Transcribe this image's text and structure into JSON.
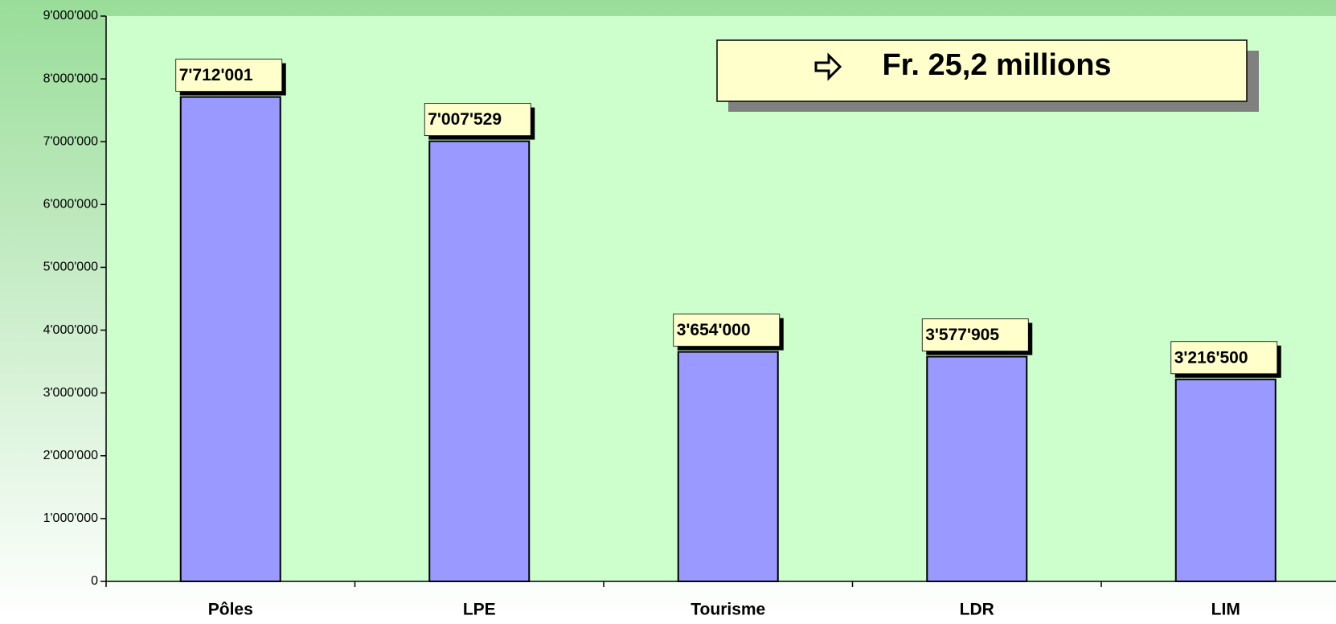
{
  "chart_data": {
    "type": "bar",
    "annotation": "Fr. 25,2 millions",
    "categories": [
      "Pôles",
      "LPE",
      "Tourisme",
      "LDR",
      "LIM"
    ],
    "values": [
      7712001,
      7007529,
      3654000,
      3577905,
      3216500
    ],
    "value_labels": [
      "7'712'001",
      "7'007'529",
      "3'654'000",
      "3'577'905",
      "3'216'500"
    ],
    "color": "#9999ff",
    "ylim": [
      0,
      9000000
    ],
    "yticks": [
      0,
      {
        "value": 1000000,
        "label": "1'000'000"
      },
      {
        "value": 2000000,
        "label": "2'000'000"
      },
      {
        "value": 3000000,
        "label": "3'000'000"
      },
      {
        "value": 4000000,
        "label": "4'000'000"
      },
      {
        "value": 5000000,
        "label": "5'000'000"
      },
      {
        "value": 6000000,
        "label": "6'000'000"
      },
      {
        "value": 7000000,
        "label": "7'000'000"
      },
      {
        "value": 8000000,
        "label": "8'000'000"
      },
      {
        "value": 9000000,
        "label": "9'000'000"
      }
    ],
    "grid": false
  }
}
